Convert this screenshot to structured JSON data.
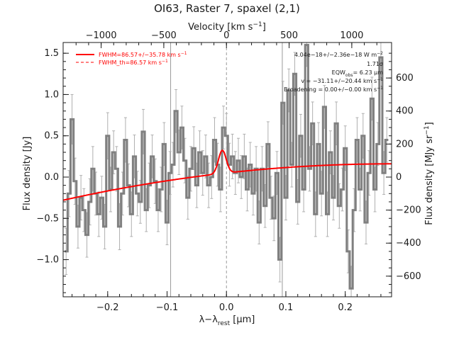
{
  "chart_data": {
    "type": "line",
    "title": "OI63, Raster 7, spaxel (2,1)",
    "xlabel": "λ−λ",
    "xlabel_sub": "rest",
    "xlabel_unit": " [μm]",
    "ylabel": "Flux density [Jy]",
    "xlim": [
      -0.275,
      0.278
    ],
    "ylim": [
      -1.45,
      1.63
    ],
    "x_ticks": [
      -0.2,
      -0.1,
      0.0,
      0.1,
      0.2
    ],
    "x_tick_labels": [
      "−0.2",
      "−0.1",
      "0.0",
      "0.1",
      "0.2"
    ],
    "y_ticks": [
      -1.0,
      -0.5,
      0.0,
      0.5,
      1.0,
      1.5
    ],
    "y_tick_labels": [
      "−1.0",
      "−0.5",
      "0.0",
      "0.5",
      "1.0",
      "1.5"
    ],
    "top_axis": {
      "label": "Velocity [km s",
      "label_sup": "−1",
      "label_end": "]",
      "ticks": [
        -1000,
        -500,
        0,
        500,
        1000
      ],
      "tick_labels": [
        "−1000",
        "−500",
        "0",
        "500",
        "1000"
      ]
    },
    "right_axis": {
      "label": "Flux density [MJy sr",
      "label_sup": "−1",
      "label_end": "]",
      "ticks": [
        600,
        400,
        200,
        0,
        -200,
        -400,
        -600
      ],
      "tick_labels": [
        "600",
        "400",
        "200",
        "0",
        "−200",
        "−400",
        "−600"
      ]
    },
    "vertical_lines_x": [
      -0.094,
      0.0,
      0.094
    ],
    "legend": {
      "placement": "top-left",
      "entries": [
        {
          "label": "FWHM=86.57+/−35.78 km s",
          "sup": "−1",
          "style": "solid"
        },
        {
          "label": "FWHM_th=86.57 km s",
          "sup": "−1",
          "style": "dashed"
        }
      ]
    },
    "annotations": [
      {
        "text": "4.04e−18+/−2.36e−18 W m",
        "sup": "−2"
      },
      {
        "text": "1.71σ"
      },
      {
        "text": "EQW",
        "sub": "obs",
        "tail": "= 6.23 μm"
      },
      {
        "text": "v = −31.11+/−20.44 km s",
        "sup": "−1"
      },
      {
        "text": "Broadening = 0.00+/−0.00 km s",
        "sup": "−1"
      }
    ],
    "spectrum": {
      "x": [
        -0.27,
        -0.265,
        -0.26,
        -0.255,
        -0.25,
        -0.245,
        -0.24,
        -0.235,
        -0.23,
        -0.225,
        -0.22,
        -0.215,
        -0.21,
        -0.205,
        -0.2,
        -0.195,
        -0.19,
        -0.185,
        -0.18,
        -0.175,
        -0.17,
        -0.165,
        -0.16,
        -0.155,
        -0.15,
        -0.145,
        -0.14,
        -0.135,
        -0.13,
        -0.125,
        -0.12,
        -0.115,
        -0.11,
        -0.105,
        -0.1,
        -0.095,
        -0.09,
        -0.085,
        -0.08,
        -0.075,
        -0.07,
        -0.065,
        -0.06,
        -0.055,
        -0.05,
        -0.045,
        -0.04,
        -0.035,
        -0.03,
        -0.025,
        -0.02,
        -0.015,
        -0.01,
        -0.005,
        0.0,
        0.005,
        0.01,
        0.015,
        0.02,
        0.025,
        0.03,
        0.035,
        0.04,
        0.045,
        0.05,
        0.055,
        0.06,
        0.065,
        0.07,
        0.075,
        0.08,
        0.085,
        0.09,
        0.095,
        0.1,
        0.105,
        0.11,
        0.115,
        0.12,
        0.125,
        0.13,
        0.135,
        0.14,
        0.145,
        0.15,
        0.155,
        0.16,
        0.165,
        0.17,
        0.175,
        0.18,
        0.185,
        0.19,
        0.195,
        0.2,
        0.205,
        0.21,
        0.215,
        0.22,
        0.225,
        0.23,
        0.235,
        0.24,
        0.245,
        0.25,
        0.255,
        0.26,
        0.265,
        0.27
      ],
      "y": [
        -0.9,
        -0.2,
        0.7,
        -0.05,
        -0.6,
        -0.25,
        -0.4,
        -0.7,
        -0.3,
        0.1,
        -0.2,
        -0.45,
        -0.25,
        -0.6,
        0.5,
        -0.15,
        0.3,
        0.1,
        -0.6,
        -0.2,
        0.45,
        -0.1,
        -0.45,
        0.25,
        -0.2,
        -0.3,
        0.55,
        -0.4,
        -0.1,
        0.25,
        -0.05,
        -0.4,
        -0.15,
        0.4,
        -0.55,
        0.05,
        0.15,
        0.8,
        0.3,
        0.6,
        0.2,
        -0.25,
        0.1,
        0.35,
        -0.1,
        0.3,
        0.05,
        0.25,
        -0.1,
        0.0,
        0.45,
        0.15,
        -0.15,
        0.6,
        0.5,
        0.15,
        0.25,
        0.05,
        0.2,
        0.0,
        0.25,
        -0.15,
        0.15,
        -0.2,
        0.1,
        -0.55,
        0.1,
        -0.35,
        0.4,
        -0.25,
        -0.5,
        0.05,
        -1.0,
        0.9,
        -0.25,
        1.05,
        0.15,
        1.25,
        -0.3,
        0.5,
        -0.15,
        1.6,
        0.1,
        0.65,
        -0.45,
        0.4,
        -0.2,
        0.85,
        -0.45,
        0.3,
        -0.25,
        0.65,
        -0.35,
        -0.15,
        0.35,
        -0.9,
        -1.35,
        -0.4,
        0.45,
        -0.15,
        0.5,
        -0.55,
        0.05,
        0.95,
        -0.15,
        0.4,
        1.45,
        0.05,
        0.45
      ],
      "err": [
        0.28,
        0.28,
        0.3,
        0.28,
        0.26,
        0.27,
        0.26,
        0.27,
        0.28,
        0.27,
        0.26,
        0.27,
        0.26,
        0.27,
        0.28,
        0.27,
        0.26,
        0.27,
        0.28,
        0.26,
        0.27,
        0.26,
        0.27,
        0.26,
        0.27,
        0.26,
        0.27,
        0.26,
        0.27,
        0.26,
        0.27,
        0.26,
        0.27,
        0.26,
        0.27,
        0.26,
        0.27,
        0.26,
        0.27,
        0.26,
        0.27,
        0.26,
        0.27,
        0.26,
        0.27,
        0.26,
        0.27,
        0.26,
        0.27,
        0.26,
        0.27,
        0.26,
        0.27,
        0.26,
        0.27,
        0.26,
        0.27,
        0.26,
        0.27,
        0.26,
        0.27,
        0.26,
        0.27,
        0.26,
        0.27,
        0.26,
        0.27,
        0.26,
        0.27,
        0.26,
        0.27,
        0.26,
        0.27,
        0.26,
        0.27,
        0.26,
        0.27,
        0.26,
        0.27,
        0.26,
        0.27,
        0.26,
        0.27,
        0.26,
        0.27,
        0.26,
        0.27,
        0.26,
        0.27,
        0.26,
        0.27,
        0.26,
        0.27,
        0.26,
        0.27,
        0.26,
        0.27,
        0.26,
        0.27,
        0.26,
        0.27,
        0.26,
        0.27,
        0.26,
        0.27,
        0.26,
        0.27,
        0.26,
        0.27
      ],
      "color": "#808080"
    },
    "fit": {
      "color": "#ff0000",
      "baseline_at_left": -0.28,
      "baseline_at_zero": 0.05,
      "baseline_at_right": 0.16,
      "peak_center": -0.007,
      "peak_amplitude": 0.28,
      "peak_sigma": 0.0065
    }
  }
}
